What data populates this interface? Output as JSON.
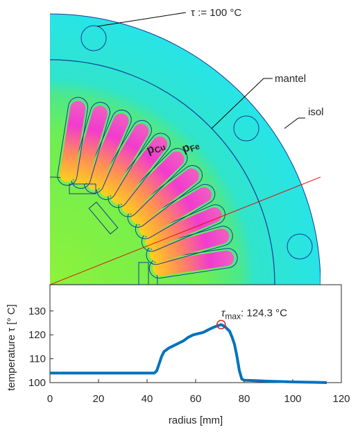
{
  "chart_data": {
    "type": "line",
    "xlabel": "radius [mm]",
    "ylabel": "temperature τ [° C]",
    "x": [
      0,
      10,
      20,
      30,
      40,
      43,
      44,
      45,
      46,
      47,
      49,
      51,
      53,
      55,
      57,
      59,
      61,
      63,
      65,
      67,
      69,
      70.5,
      72,
      74,
      75,
      76,
      77,
      78,
      79,
      80,
      85,
      90,
      100,
      110,
      114
    ],
    "values": [
      104,
      104,
      104,
      104,
      104,
      104,
      105,
      108,
      111,
      113,
      114.5,
      115.5,
      116.5,
      117.5,
      119,
      120,
      120.5,
      121,
      122,
      123,
      123.8,
      124.3,
      123.5,
      121.5,
      119,
      116,
      111,
      105,
      101.5,
      101,
      100.8,
      100.6,
      100.3,
      100.1,
      100
    ],
    "color": "#0072bd",
    "xlim": [
      0,
      120
    ],
    "xticks": [
      0,
      20,
      40,
      60,
      80,
      100,
      120
    ],
    "ylim": [
      100,
      141
    ],
    "yticks": [
      100,
      110,
      120,
      130
    ],
    "max": {
      "x": 70.5,
      "y": 124.3,
      "symbol": "τ",
      "sub": "max",
      "text": ": 124.3 °C"
    },
    "annotations": {
      "tau_ref": "τ := 100 °C",
      "mantel": "mantel",
      "isol": "isol",
      "p_cu": {
        "text": "p",
        "sub": "Cu"
      },
      "p_fe": {
        "text": "p",
        "sub": "Fe"
      }
    }
  }
}
